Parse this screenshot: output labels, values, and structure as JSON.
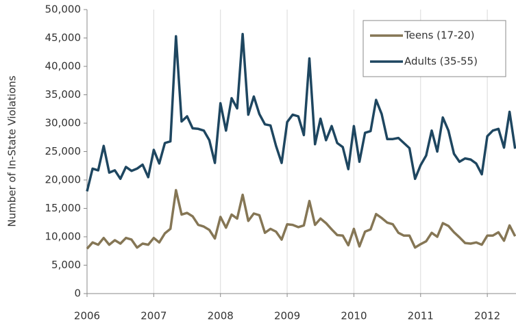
{
  "chart_data": {
    "type": "line",
    "y_label": "Number of In-State Violations",
    "x": [
      2006,
      2006.083,
      2006.167,
      2006.25,
      2006.333,
      2006.417,
      2006.5,
      2006.583,
      2006.667,
      2006.75,
      2006.833,
      2006.917,
      2007,
      2007.083,
      2007.167,
      2007.25,
      2007.333,
      2007.417,
      2007.5,
      2007.583,
      2007.667,
      2007.75,
      2007.833,
      2007.917,
      2008,
      2008.083,
      2008.167,
      2008.25,
      2008.333,
      2008.417,
      2008.5,
      2008.583,
      2008.667,
      2008.75,
      2008.833,
      2008.917,
      2009,
      2009.083,
      2009.167,
      2009.25,
      2009.333,
      2009.417,
      2009.5,
      2009.583,
      2009.667,
      2009.75,
      2009.833,
      2009.917,
      2010,
      2010.083,
      2010.167,
      2010.25,
      2010.333,
      2010.417,
      2010.5,
      2010.583,
      2010.667,
      2010.75,
      2010.833,
      2010.917,
      2011,
      2011.083,
      2011.167,
      2011.25,
      2011.333,
      2011.417,
      2011.5,
      2011.583,
      2011.667,
      2011.75,
      2011.833,
      2011.917,
      2012,
      2012.083,
      2012.167,
      2012.25,
      2012.333,
      2012.417
    ],
    "series": [
      {
        "name": "Teens (17-20)",
        "color": "#857655",
        "values": [
          7900,
          9000,
          8600,
          9800,
          8600,
          9400,
          8800,
          9800,
          9500,
          8100,
          8800,
          8600,
          9800,
          9000,
          10600,
          11400,
          18200,
          13900,
          14200,
          13600,
          12100,
          11800,
          11200,
          9700,
          13500,
          11600,
          13900,
          13200,
          17400,
          12800,
          14100,
          13800,
          10700,
          11400,
          10900,
          9500,
          12200,
          12100,
          11700,
          12000,
          16300,
          12100,
          13200,
          12400,
          11300,
          10300,
          10200,
          8500,
          11400,
          8300,
          10900,
          11300,
          14000,
          13300,
          12500,
          12200,
          10700,
          10200,
          10200,
          8100,
          8700,
          9200,
          10700,
          10000,
          12400,
          11900,
          10800,
          9900,
          8900,
          8800,
          9000,
          8600,
          10200,
          10200,
          10800,
          9300,
          12000,
          10100
        ]
      },
      {
        "name": "Adults (35-55)",
        "color": "#1e4660",
        "values": [
          18000,
          22000,
          21700,
          26000,
          21300,
          21700,
          20200,
          22300,
          21600,
          22000,
          22700,
          20500,
          25300,
          22900,
          26500,
          26800,
          45300,
          30300,
          31200,
          29100,
          29000,
          28700,
          27000,
          23000,
          33500,
          28700,
          34400,
          32600,
          45700,
          31500,
          34700,
          31600,
          29800,
          29600,
          26000,
          23000,
          30200,
          31500,
          31200,
          27900,
          41400,
          26300,
          30800,
          27000,
          29500,
          26500,
          25800,
          21900,
          29500,
          23200,
          28300,
          28600,
          34100,
          31600,
          27200,
          27200,
          27400,
          26500,
          25600,
          20200,
          22600,
          24300,
          28700,
          25000,
          31000,
          28700,
          24600,
          23200,
          23800,
          23600,
          22900,
          21000,
          27700,
          28700,
          29000,
          25700,
          32000,
          25500
        ]
      }
    ],
    "xlim": [
      2006,
      2012.43
    ],
    "xticks": [
      2006,
      2007,
      2008,
      2009,
      2010,
      2011,
      2012
    ],
    "ylim": [
      0,
      50000
    ],
    "yticks": [
      0,
      {
        "value": 5000,
        "label": "5,000"
      },
      {
        "value": 10000,
        "label": "10,000"
      },
      {
        "value": 15000,
        "label": "15,000"
      },
      {
        "value": 20000,
        "label": "20,000"
      },
      {
        "value": 25000,
        "label": "25,000"
      },
      {
        "value": 30000,
        "label": "30,000"
      },
      {
        "value": 35000,
        "label": "35,000"
      },
      {
        "value": 40000,
        "label": "40,000"
      },
      {
        "value": 45000,
        "label": "45,000"
      },
      {
        "value": 50000,
        "label": "50,000"
      }
    ],
    "grid": "x",
    "legend": "top-right"
  }
}
